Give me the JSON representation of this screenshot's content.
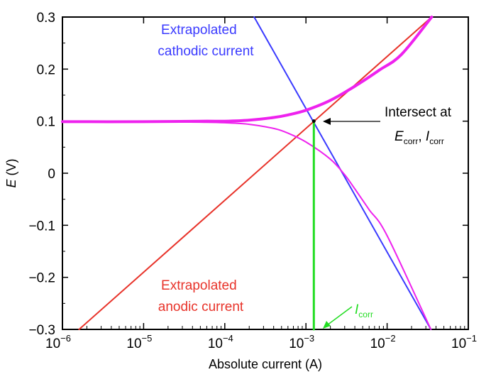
{
  "chart_data": {
    "type": "line",
    "title": "",
    "xlabel": "Absolute current (A)",
    "ylabel_main": "E",
    "ylabel_unit": " (V)",
    "xscale": "log",
    "xlim": [
      1e-06,
      0.1
    ],
    "ylim": [
      -0.3,
      0.3
    ],
    "grid": false,
    "x_ticks": [
      {
        "value": 1e-06,
        "base": "10",
        "exp": "−6"
      },
      {
        "value": 1e-05,
        "base": "10",
        "exp": "−5"
      },
      {
        "value": 0.0001,
        "base": "10",
        "exp": "−4"
      },
      {
        "value": 0.001,
        "base": "10",
        "exp": "−3"
      },
      {
        "value": 0.01,
        "base": "10",
        "exp": "−2"
      },
      {
        "value": 0.1,
        "base": "10",
        "exp": "−1"
      }
    ],
    "y_ticks": [
      {
        "value": 0.3,
        "label": "0.3"
      },
      {
        "value": 0.2,
        "label": "0.2"
      },
      {
        "value": 0.1,
        "label": "0.1"
      },
      {
        "value": 0.0,
        "label": "0"
      },
      {
        "value": -0.1,
        "label": "−0.1"
      },
      {
        "value": -0.2,
        "label": "−0.2"
      },
      {
        "value": -0.3,
        "label": "−0.3"
      }
    ],
    "series": [
      {
        "key": "cathodic",
        "color": "#3a3aff",
        "width": 2,
        "style": "line",
        "x": [
          0.00023,
          0.0346
        ],
        "y": [
          0.3,
          -0.3
        ]
      },
      {
        "key": "anodic",
        "color": "#e8332a",
        "width": 2,
        "style": "line",
        "x": [
          1.6e-06,
          0.0354
        ],
        "y": [
          -0.3,
          0.3
        ]
      },
      {
        "key": "upper_branch",
        "color": "#ee22ee",
        "width": 4,
        "style": "curve",
        "x": [
          1e-06,
          1e-05,
          5e-05,
          0.0001,
          0.0002,
          0.0004,
          0.0006,
          0.001,
          0.002,
          0.004,
          0.008,
          0.015,
          0.0354
        ],
        "y": [
          0.099,
          0.099,
          0.1,
          0.1,
          0.102,
          0.107,
          0.112,
          0.121,
          0.14,
          0.167,
          0.198,
          0.228,
          0.3
        ]
      },
      {
        "key": "lower_branch",
        "color": "#ee22ee",
        "width": 2,
        "style": "curve",
        "x": [
          1e-06,
          1e-05,
          5e-05,
          0.0001,
          0.0002,
          0.0004,
          0.0006,
          0.001,
          0.002,
          0.003,
          0.004,
          0.006,
          0.01,
          0.0346
        ],
        "y": [
          0.099,
          0.099,
          0.098,
          0.097,
          0.094,
          0.086,
          0.077,
          0.06,
          0.027,
          -0.003,
          -0.03,
          -0.07,
          -0.12,
          -0.3
        ]
      },
      {
        "key": "icorr_line",
        "color": "#22dd22",
        "width": 3,
        "style": "line",
        "x": [
          0.00125,
          0.00125
        ],
        "y": [
          -0.3,
          0.1
        ]
      }
    ],
    "intersection": {
      "x": 0.00125,
      "y": 0.1
    },
    "annotations": {
      "cathodic_line1": "Extrapolated",
      "cathodic_line2": "cathodic current",
      "anodic_line1": "Extrapolated",
      "anodic_line2": "anodic current",
      "intersect_line1": "Intersect at",
      "e_letter": "E",
      "e_sub": "corr",
      "sep": ", ",
      "i_letter": "I",
      "i_sub": "corr",
      "icorr_letter": "I",
      "icorr_sub": "corr"
    },
    "colors": {
      "cathodic": "#3a3aff",
      "anodic": "#e8332a",
      "curve": "#ee22ee",
      "icorr": "#22dd22"
    }
  }
}
